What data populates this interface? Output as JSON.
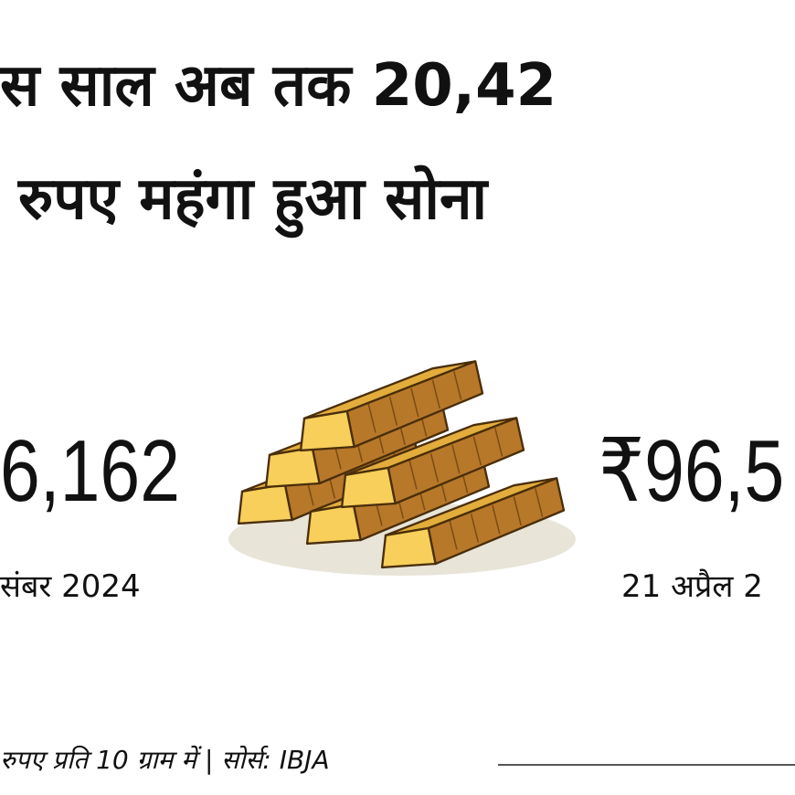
{
  "header": {
    "title": [
      "स साल अब तक 20,42",
      "रुपए महंगा हुआ सोना"
    ]
  },
  "left": {
    "price": "6,162",
    "date": "संबर 2024"
  },
  "right": {
    "price": "₹96,5",
    "date": "21 अप्रैल 2"
  },
  "footer": {
    "note": "रुपए प्रति 10 ग्राम में | सोर्स: IBJA"
  }
}
